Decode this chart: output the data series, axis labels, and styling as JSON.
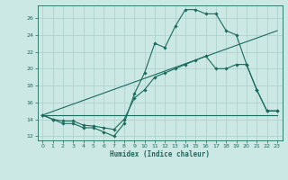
{
  "title": "",
  "xlabel": "Humidex (Indice chaleur)",
  "background_color": "#cce8e4",
  "grid_color": "#aacfcb",
  "line_color": "#1a6b5e",
  "xlim": [
    -0.5,
    23.5
  ],
  "ylim": [
    11.5,
    27.5
  ],
  "xticks": [
    0,
    1,
    2,
    3,
    4,
    5,
    6,
    7,
    8,
    9,
    10,
    11,
    12,
    13,
    14,
    15,
    16,
    17,
    18,
    19,
    20,
    21,
    22,
    23
  ],
  "yticks": [
    12,
    14,
    16,
    18,
    20,
    22,
    24,
    26
  ],
  "lines": [
    {
      "x": [
        0,
        1,
        2,
        3,
        4,
        5,
        6,
        7,
        8,
        9,
        10,
        11,
        12,
        13,
        14,
        15,
        16,
        17,
        18,
        19,
        20,
        21,
        22,
        23
      ],
      "y": [
        14.5,
        14.0,
        13.5,
        13.5,
        13.0,
        13.0,
        12.5,
        12.0,
        13.5,
        17.0,
        19.5,
        23.0,
        22.5,
        25.0,
        27.0,
        27.0,
        26.5,
        26.5,
        24.5,
        24.0,
        20.5,
        17.5,
        15.0,
        15.0
      ],
      "marker": true
    },
    {
      "x": [
        0,
        1,
        2,
        3,
        4,
        5,
        6,
        7,
        8,
        9,
        10,
        11,
        12,
        13,
        14,
        15,
        16,
        17,
        18,
        19,
        20,
        21,
        22,
        23
      ],
      "y": [
        14.5,
        14.0,
        13.8,
        13.8,
        13.3,
        13.2,
        13.0,
        12.8,
        14.0,
        16.5,
        17.5,
        19.0,
        19.5,
        20.0,
        20.5,
        21.0,
        21.5,
        20.0,
        20.0,
        20.5,
        20.5,
        17.5,
        15.0,
        15.0
      ],
      "marker": true
    },
    {
      "x": [
        0,
        23
      ],
      "y": [
        14.5,
        14.5
      ],
      "marker": false
    },
    {
      "x": [
        0,
        23
      ],
      "y": [
        14.5,
        24.5
      ],
      "marker": false
    }
  ]
}
